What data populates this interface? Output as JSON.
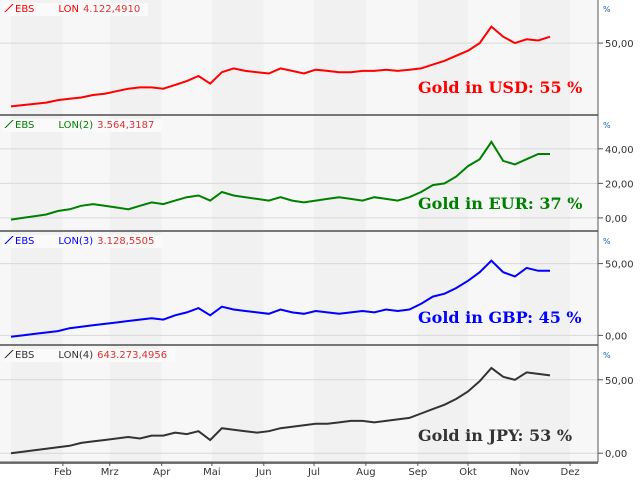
{
  "chart_data": [
    {
      "type": "line",
      "legend": {
        "source": "EBS",
        "instrument": "LON",
        "value": "4.122,4910"
      },
      "annotation": "Gold in USD: 55 %",
      "unit": "%",
      "color": "#ff0000",
      "yticks": [
        50
      ],
      "ytick_labels": [
        "50,00"
      ],
      "ylim": [
        -6,
        84
      ],
      "series": [
        {
          "values": [
            0,
            1,
            2,
            3,
            5,
            6,
            7,
            9,
            10,
            12,
            14,
            15,
            15,
            14,
            17,
            20,
            24,
            18,
            27,
            30,
            28,
            27,
            26,
            30,
            28,
            26,
            29,
            28,
            27,
            27,
            28,
            28,
            29,
            28,
            29,
            30,
            33,
            36,
            40,
            44,
            50,
            63,
            55,
            50,
            53,
            52,
            55
          ]
        }
      ]
    },
    {
      "type": "line",
      "legend": {
        "source": "EBS",
        "instrument": "LON(2)",
        "value": "3.564,3187"
      },
      "annotation": "Gold in EUR: 37 %",
      "unit": "%",
      "color": "#008000",
      "yticks": [
        0,
        20,
        40
      ],
      "ytick_labels": [
        "0,00",
        "20,00",
        "40,00"
      ],
      "ylim": [
        -7,
        59
      ],
      "series": [
        {
          "values": [
            -1,
            0,
            1,
            2,
            4,
            5,
            7,
            8,
            7,
            6,
            5,
            7,
            9,
            8,
            10,
            12,
            13,
            10,
            15,
            13,
            12,
            11,
            10,
            12,
            10,
            9,
            10,
            11,
            12,
            11,
            10,
            12,
            11,
            10,
            12,
            15,
            19,
            20,
            24,
            30,
            34,
            44,
            33,
            31,
            34,
            37,
            37
          ]
        }
      ]
    },
    {
      "type": "line",
      "legend": {
        "source": "EBS",
        "instrument": "LON(3)",
        "value": "3.128,5505"
      },
      "annotation": "Gold in GBP: 45 %",
      "unit": "%",
      "color": "#0000ff",
      "yticks": [
        0,
        50
      ],
      "ytick_labels": [
        "0,00",
        "50,00"
      ],
      "ylim": [
        -6,
        72
      ],
      "series": [
        {
          "values": [
            -1,
            0,
            1,
            2,
            3,
            5,
            6,
            7,
            8,
            9,
            10,
            11,
            12,
            11,
            14,
            16,
            19,
            14,
            20,
            18,
            17,
            16,
            15,
            18,
            16,
            15,
            17,
            16,
            15,
            16,
            17,
            16,
            18,
            17,
            18,
            22,
            27,
            29,
            33,
            38,
            44,
            52,
            44,
            41,
            47,
            45,
            45
          ]
        }
      ]
    },
    {
      "type": "line",
      "legend": {
        "source": "EBS",
        "instrument": "LON(4)",
        "value": "643.273,4956"
      },
      "annotation": "Gold in JPY: 53 %",
      "unit": "%",
      "color": "#333333",
      "yticks": [
        0,
        50
      ],
      "ytick_labels": [
        "0,00",
        "50,00"
      ],
      "ylim": [
        -6,
        73
      ],
      "series": [
        {
          "values": [
            0,
            1,
            2,
            3,
            4,
            5,
            7,
            8,
            9,
            10,
            11,
            10,
            12,
            12,
            14,
            13,
            15,
            9,
            17,
            16,
            15,
            14,
            15,
            17,
            18,
            19,
            20,
            20,
            21,
            22,
            22,
            21,
            22,
            23,
            24,
            27,
            30,
            33,
            37,
            42,
            49,
            58,
            52,
            50,
            55,
            54,
            53
          ]
        }
      ]
    }
  ],
  "x_axis": {
    "labels": [
      "Feb",
      "Mrz",
      "Apr",
      "Mai",
      "Jun",
      "Jul",
      "Aug",
      "Sep",
      "Okt",
      "Nov",
      "Dez"
    ],
    "start": "01-01",
    "step_days": 7
  }
}
